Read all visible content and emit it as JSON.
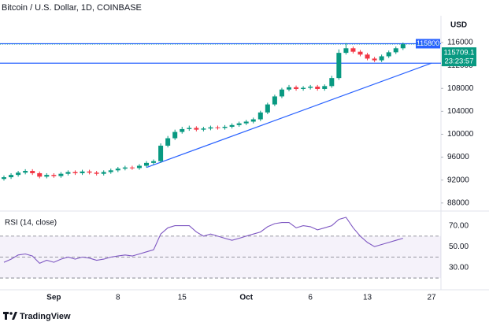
{
  "chart_data": {
    "type": "candlestick",
    "title": "Bitcoin / U.S. Dollar, 1D, COINBASE",
    "currency": "USD",
    "categories": [
      null,
      null,
      null,
      null,
      null,
      null,
      null,
      "Sep",
      null,
      null,
      null,
      null,
      null,
      null,
      null,
      null,
      "8",
      null,
      null,
      null,
      null,
      null,
      null,
      null,
      null,
      "15",
      null,
      null,
      null,
      null,
      null,
      null,
      null,
      null,
      "Oct",
      null,
      null,
      null,
      null,
      null,
      null,
      null,
      null,
      "6",
      null,
      null,
      null,
      null,
      null,
      null,
      null,
      "13",
      null,
      null,
      null,
      null,
      null,
      null,
      null,
      null,
      "27"
    ],
    "open": [
      92200,
      92500,
      92900,
      93300,
      93600,
      93200,
      92600,
      92900,
      92700,
      93100,
      93400,
      93200,
      93500,
      93300,
      93100,
      93400,
      93700,
      94000,
      94200,
      94100,
      94500,
      95000,
      95300,
      98000,
      99300,
      100400,
      100900,
      101100,
      100800,
      101000,
      101200,
      101100,
      101300,
      101600,
      101900,
      102200,
      102600,
      103800,
      105200,
      106600,
      107800,
      108200,
      107900,
      108100,
      108300,
      107900,
      108400,
      109800,
      114200,
      115000,
      114400,
      113900,
      113200,
      112900,
      113600,
      114300,
      115000,
      null,
      null,
      null,
      null
    ],
    "high": [
      92800,
      93200,
      93600,
      93900,
      93900,
      93500,
      93200,
      93200,
      93400,
      93700,
      93700,
      93800,
      93800,
      93600,
      93700,
      94000,
      94300,
      94500,
      94500,
      94800,
      95300,
      95600,
      98400,
      99700,
      100800,
      101300,
      101500,
      101400,
      101300,
      101500,
      101500,
      101600,
      101900,
      102200,
      102500,
      102900,
      104100,
      105500,
      106900,
      108100,
      108600,
      108500,
      108400,
      108600,
      108600,
      108700,
      110200,
      114800,
      115900,
      115300,
      114700,
      114200,
      113500,
      113900,
      114600,
      115300,
      116000,
      null,
      null,
      null,
      null
    ],
    "low": [
      91900,
      92200,
      92600,
      93000,
      92900,
      92300,
      92300,
      92400,
      92400,
      92800,
      92900,
      92900,
      93000,
      92800,
      92800,
      93100,
      93400,
      93700,
      93800,
      93800,
      94200,
      94700,
      95000,
      97700,
      99000,
      100100,
      100600,
      100500,
      100500,
      100700,
      100800,
      100800,
      101000,
      101300,
      101600,
      101900,
      102300,
      103500,
      104900,
      106300,
      107500,
      107600,
      107600,
      107800,
      107600,
      107600,
      108100,
      109500,
      113900,
      114100,
      113600,
      112900,
      112600,
      112600,
      113300,
      114000,
      114700,
      null,
      null,
      null,
      null
    ],
    "close": [
      92500,
      92900,
      93300,
      93600,
      93200,
      92600,
      92900,
      92700,
      93100,
      93400,
      93200,
      93500,
      93300,
      93100,
      93400,
      93700,
      94000,
      94200,
      94100,
      94500,
      95000,
      95300,
      98000,
      99300,
      100400,
      100900,
      101100,
      100800,
      101000,
      101200,
      101100,
      101300,
      101600,
      101900,
      102200,
      102600,
      103800,
      105200,
      106600,
      107800,
      108200,
      107900,
      108100,
      108300,
      107900,
      108400,
      109800,
      114200,
      115000,
      114400,
      113900,
      113200,
      112900,
      113600,
      114300,
      115000,
      115709,
      null,
      null,
      null,
      null
    ],
    "up_color": "#089981",
    "down_color": "#f23645",
    "ylim": [
      86600,
      119300
    ],
    "yticks": [
      88000,
      92000,
      96000,
      100000,
      104000,
      108000,
      112000,
      116000
    ],
    "labeled_levels": [
      115800
    ],
    "levels": [
      112400
    ],
    "level_color": "#2962ff",
    "trendline": {
      "x": [
        20,
        60
      ],
      "y": [
        94200,
        112400
      ]
    },
    "last_price": 115709.1,
    "countdown": "23:23:57",
    "rsi": {
      "name": "RSI (14, close)",
      "color": "#7e57c2",
      "values": [
        45,
        48,
        52,
        53,
        51,
        44,
        47,
        45,
        48,
        50,
        48,
        50,
        49,
        47,
        48,
        50,
        51,
        52,
        51,
        53,
        55,
        57,
        72,
        78,
        80,
        80,
        80,
        74,
        70,
        72,
        70,
        68,
        66,
        68,
        70,
        72,
        74,
        79,
        82,
        83,
        83,
        78,
        80,
        79,
        76,
        78,
        80,
        86,
        88,
        78,
        70,
        64,
        60,
        62,
        64,
        66,
        68,
        null,
        null,
        null,
        null
      ],
      "ylim": [
        21,
        91
      ],
      "yticks": [
        {
          "value": 70,
          "label": "70.00"
        },
        {
          "value": 50,
          "label": "50.00"
        },
        {
          "value": 30,
          "label": "30.00"
        }
      ]
    },
    "brand": "TradingView"
  }
}
